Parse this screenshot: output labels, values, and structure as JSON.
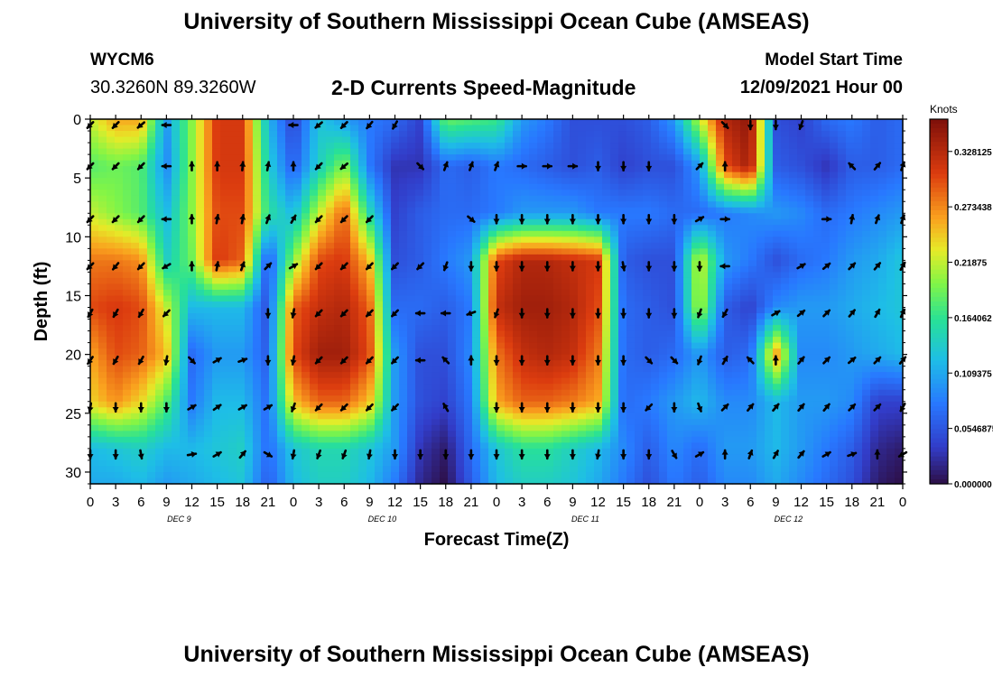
{
  "header": {
    "title": "University of Southern Mississippi Ocean Cube (AMSEAS)",
    "station": "WYCM6",
    "coords": "30.3260N  89.3260W",
    "subtitle": "2-D Currents Speed-Magnitude",
    "model_start_label": "Model Start Time",
    "model_start_value": "12/09/2021 Hour 00"
  },
  "footer": {
    "title": "University of Southern Mississippi Ocean Cube (AMSEAS)"
  },
  "chart_data": {
    "type": "heatmap",
    "title": "2-D Currents Speed-Magnitude",
    "xlabel": "Forecast Time(Z)",
    "ylabel": "Depth (ft)",
    "x_ticks": [
      "0",
      "3",
      "6",
      "9",
      "12",
      "15",
      "18",
      "21",
      "0",
      "3",
      "6",
      "9",
      "12",
      "15",
      "18",
      "21",
      "0",
      "3",
      "6",
      "9",
      "12",
      "15",
      "18",
      "21",
      "0",
      "3",
      "6",
      "9",
      "12",
      "15",
      "18",
      "21",
      "0"
    ],
    "day_labels": [
      "DEC 9",
      "DEC 10",
      "DEC 11",
      "DEC 12"
    ],
    "y_ticks": [
      0,
      5,
      10,
      15,
      20,
      25,
      30
    ],
    "xlim": [
      0,
      96
    ],
    "ylim": [
      0,
      31
    ],
    "colorbar": {
      "unit_label": "Knots",
      "tick_labels": [
        "0.328125",
        "0.273438",
        "0.21875",
        "0.164062",
        "0.109375",
        "0.0546875",
        "0.000000"
      ],
      "range": [
        0,
        0.36
      ]
    },
    "speed_field": {
      "times": [
        0,
        3,
        6,
        9,
        12,
        15,
        18,
        21,
        24,
        27,
        30,
        33,
        36,
        39,
        42,
        45,
        48,
        51,
        54,
        57,
        60,
        63,
        66,
        69,
        72,
        75,
        78,
        81,
        84,
        87,
        90,
        93,
        96
      ],
      "depths": [
        0,
        4,
        8,
        12,
        16,
        20,
        24,
        28,
        31
      ],
      "values_knots": [
        [
          0.22,
          0.26,
          0.26,
          0.1,
          0.2,
          0.31,
          0.31,
          0.12,
          0.04,
          0.13,
          0.1,
          0.08,
          0.07,
          0.04,
          0.19,
          0.18,
          0.17,
          0.1,
          0.08,
          0.05,
          0.05,
          0.05,
          0.06,
          0.1,
          0.22,
          0.33,
          0.35,
          0.05,
          0.04,
          0.07,
          0.08,
          0.06,
          0.07
        ],
        [
          0.18,
          0.19,
          0.18,
          0.09,
          0.2,
          0.31,
          0.31,
          0.14,
          0.06,
          0.14,
          0.2,
          0.08,
          0.03,
          0.03,
          0.07,
          0.06,
          0.08,
          0.07,
          0.06,
          0.05,
          0.06,
          0.04,
          0.05,
          0.05,
          0.1,
          0.3,
          0.34,
          0.06,
          0.05,
          0.03,
          0.06,
          0.06,
          0.07
        ],
        [
          0.22,
          0.2,
          0.18,
          0.12,
          0.2,
          0.3,
          0.3,
          0.16,
          0.12,
          0.22,
          0.29,
          0.15,
          0.04,
          0.06,
          0.07,
          0.07,
          0.08,
          0.1,
          0.1,
          0.1,
          0.08,
          0.08,
          0.08,
          0.07,
          0.07,
          0.08,
          0.09,
          0.1,
          0.09,
          0.07,
          0.08,
          0.09,
          0.1
        ],
        [
          0.28,
          0.28,
          0.27,
          0.14,
          0.19,
          0.31,
          0.29,
          0.05,
          0.2,
          0.3,
          0.31,
          0.25,
          0.05,
          0.06,
          0.08,
          0.1,
          0.3,
          0.33,
          0.33,
          0.32,
          0.31,
          0.06,
          0.05,
          0.05,
          0.23,
          0.1,
          0.08,
          0.05,
          0.07,
          0.08,
          0.1,
          0.11,
          0.13
        ],
        [
          0.3,
          0.31,
          0.3,
          0.22,
          0.12,
          0.12,
          0.12,
          0.05,
          0.29,
          0.32,
          0.33,
          0.29,
          0.07,
          0.07,
          0.06,
          0.08,
          0.32,
          0.34,
          0.34,
          0.33,
          0.3,
          0.07,
          0.06,
          0.05,
          0.22,
          0.06,
          0.04,
          0.09,
          0.1,
          0.1,
          0.11,
          0.12,
          0.13
        ],
        [
          0.26,
          0.3,
          0.29,
          0.25,
          0.07,
          0.1,
          0.1,
          0.06,
          0.3,
          0.34,
          0.34,
          0.3,
          0.1,
          0.05,
          0.05,
          0.09,
          0.28,
          0.32,
          0.33,
          0.32,
          0.28,
          0.07,
          0.06,
          0.07,
          0.1,
          0.06,
          0.07,
          0.27,
          0.09,
          0.09,
          0.1,
          0.11,
          0.12
        ],
        [
          0.24,
          0.27,
          0.24,
          0.18,
          0.08,
          0.12,
          0.12,
          0.07,
          0.25,
          0.29,
          0.29,
          0.25,
          0.1,
          0.05,
          0.04,
          0.08,
          0.26,
          0.29,
          0.29,
          0.28,
          0.26,
          0.07,
          0.08,
          0.1,
          0.12,
          0.09,
          0.09,
          0.12,
          0.1,
          0.1,
          0.09,
          0.04,
          0.04
        ],
        [
          0.12,
          0.13,
          0.14,
          0.12,
          0.12,
          0.13,
          0.14,
          0.07,
          0.13,
          0.15,
          0.15,
          0.13,
          0.1,
          0.03,
          0.01,
          0.07,
          0.13,
          0.16,
          0.16,
          0.14,
          0.12,
          0.09,
          0.06,
          0.09,
          0.07,
          0.1,
          0.1,
          0.12,
          0.1,
          0.08,
          0.06,
          0.02,
          0.01
        ],
        [
          0.11,
          0.11,
          0.12,
          0.1,
          0.11,
          0.12,
          0.13,
          0.06,
          0.12,
          0.14,
          0.14,
          0.12,
          0.08,
          0.02,
          0.0,
          0.06,
          0.12,
          0.14,
          0.14,
          0.13,
          0.11,
          0.08,
          0.05,
          0.08,
          0.06,
          0.09,
          0.09,
          0.11,
          0.09,
          0.07,
          0.05,
          0.01,
          0.0
        ]
      ]
    },
    "vector_rows": [
      {
        "depth": 0.5,
        "angles_deg": [
          225,
          225,
          230,
          270,
          null,
          null,
          null,
          null,
          270,
          230,
          225,
          220,
          210,
          null,
          null,
          null,
          null,
          null,
          null,
          null,
          null,
          null,
          null,
          null,
          null,
          135,
          180,
          180,
          200,
          null,
          null,
          null,
          null
        ]
      },
      {
        "depth": 4,
        "angles_deg": [
          225,
          225,
          225,
          270,
          0,
          0,
          5,
          10,
          0,
          225,
          230,
          null,
          null,
          135,
          20,
          20,
          20,
          90,
          90,
          90,
          180,
          180,
          180,
          null,
          45,
          0,
          null,
          null,
          null,
          null,
          315,
          40,
          20
        ]
      },
      {
        "depth": 8.5,
        "angles_deg": [
          225,
          225,
          225,
          270,
          0,
          10,
          10,
          20,
          30,
          225,
          225,
          225,
          null,
          null,
          null,
          130,
          180,
          180,
          180,
          180,
          180,
          180,
          180,
          180,
          60,
          90,
          null,
          null,
          null,
          90,
          10,
          20,
          20
        ]
      },
      {
        "depth": 12.5,
        "angles_deg": [
          225,
          220,
          225,
          240,
          0,
          10,
          20,
          45,
          60,
          225,
          225,
          225,
          225,
          225,
          200,
          180,
          180,
          180,
          180,
          180,
          180,
          170,
          180,
          180,
          180,
          270,
          null,
          null,
          60,
          50,
          45,
          40,
          30
        ]
      },
      {
        "depth": 16.5,
        "angles_deg": [
          210,
          210,
          210,
          225,
          null,
          null,
          null,
          180,
          190,
          225,
          225,
          225,
          225,
          270,
          270,
          250,
          200,
          180,
          180,
          180,
          180,
          180,
          180,
          180,
          200,
          210,
          null,
          60,
          50,
          45,
          40,
          30,
          25
        ]
      },
      {
        "depth": 20.5,
        "angles_deg": [
          215,
          210,
          210,
          190,
          135,
          60,
          70,
          180,
          190,
          225,
          225,
          225,
          225,
          270,
          315,
          0,
          180,
          180,
          180,
          180,
          180,
          180,
          135,
          135,
          200,
          30,
          315,
          0,
          40,
          45,
          50,
          45,
          40
        ]
      },
      {
        "depth": 24.5,
        "angles_deg": [
          190,
          180,
          180,
          180,
          60,
          55,
          60,
          60,
          200,
          225,
          225,
          225,
          225,
          null,
          330,
          null,
          180,
          180,
          180,
          180,
          180,
          180,
          225,
          180,
          160,
          45,
          40,
          40,
          40,
          40,
          45,
          45,
          210
        ]
      },
      {
        "depth": 28.5,
        "angles_deg": [
          180,
          180,
          170,
          null,
          80,
          60,
          40,
          120,
          190,
          200,
          200,
          190,
          180,
          180,
          180,
          180,
          180,
          180,
          180,
          180,
          190,
          180,
          180,
          150,
          60,
          0,
          20,
          30,
          40,
          60,
          70,
          0,
          240
        ]
      }
    ]
  }
}
